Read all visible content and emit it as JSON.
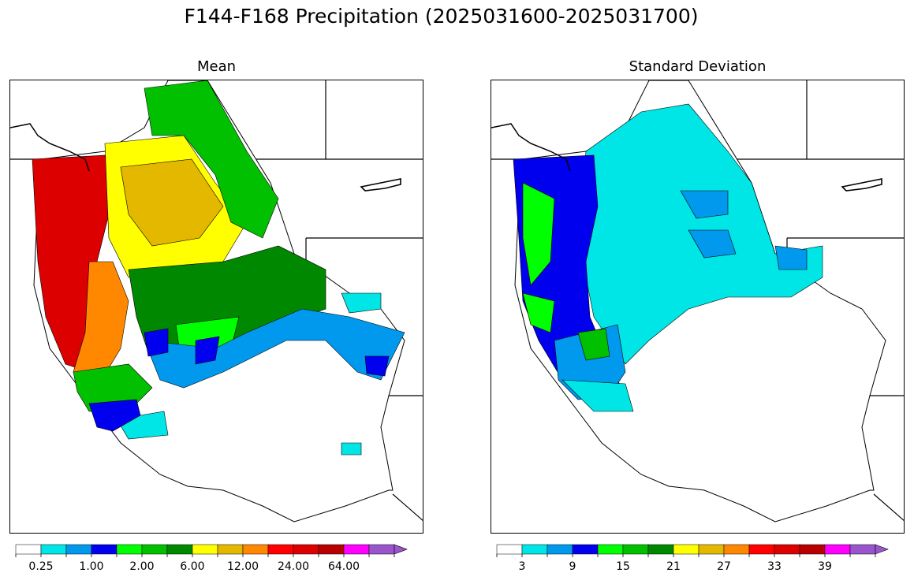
{
  "title": "F144-F168 Precipitation (2025031600-2025031700)",
  "panels": [
    {
      "title": "Mean",
      "colorbar": {
        "colors": [
          "#ffffff",
          "#00e5e5",
          "#0099ee",
          "#0000ee",
          "#00ff00",
          "#00c000",
          "#008800",
          "#ffff00",
          "#e5b800",
          "#ff8800",
          "#ff0000",
          "#dd0000",
          "#b80000",
          "#ff00ff",
          "#9955cc"
        ],
        "tick_labels": [
          "0.25",
          "1.00",
          "2.00",
          "6.00",
          "12.00",
          "24.00",
          "64.00"
        ]
      }
    },
    {
      "title": "Standard Deviation",
      "colorbar": {
        "colors": [
          "#ffffff",
          "#00e5e5",
          "#0099ee",
          "#0000ee",
          "#00ff00",
          "#00c000",
          "#008800",
          "#ffff00",
          "#e5b800",
          "#ff8800",
          "#ff0000",
          "#dd0000",
          "#b80000",
          "#ff00ff",
          "#9955cc"
        ],
        "tick_labels": [
          "3",
          "9",
          "15",
          "21",
          "27",
          "33",
          "39"
        ]
      }
    }
  ]
}
